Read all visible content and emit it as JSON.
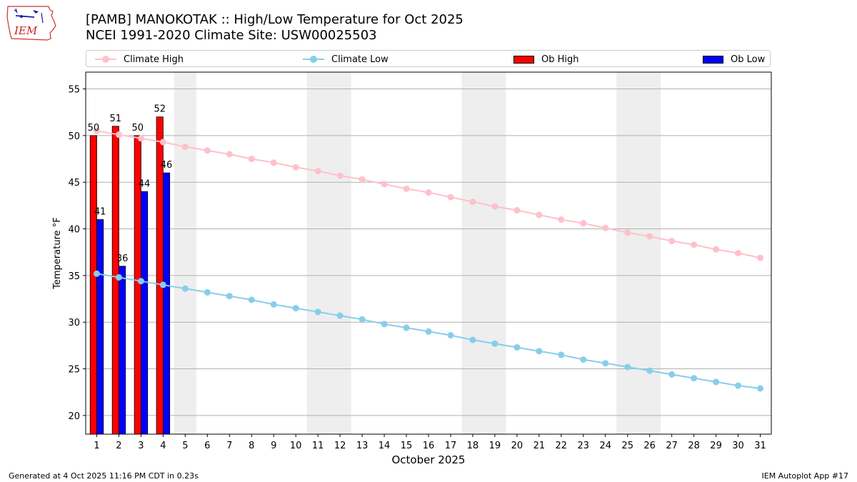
{
  "title_line1": "[PAMB] MANOKOTAK :: High/Low Temperature for Oct 2025",
  "title_line2": "NCEI 1991-2020 Climate Site: USW00025503",
  "logo_text": "IEM",
  "footer_left": "Generated at 4 Oct 2025 11:16 PM CDT in 0.23s",
  "footer_right": "IEM Autoplot App #17",
  "legend": {
    "climate_high": "Climate High",
    "climate_low": "Climate Low",
    "ob_high": "Ob High",
    "ob_low": "Ob Low"
  },
  "colors": {
    "climate_high": "#ffc0cb",
    "climate_low": "#87ceeb",
    "ob_high": "#ff0000",
    "ob_low": "#0000ff",
    "weekend_band": "#eeeeee",
    "grid": "#b0b0b0"
  },
  "chart_data": {
    "type": "bar",
    "xlabel": "October 2025",
    "ylabel": "Temperature °F",
    "ylim": [
      18,
      56.8
    ],
    "yticks": [
      20,
      25,
      30,
      35,
      40,
      45,
      50,
      55
    ],
    "xlim": [
      0.5,
      31.5
    ],
    "x": [
      1,
      2,
      3,
      4,
      5,
      6,
      7,
      8,
      9,
      10,
      11,
      12,
      13,
      14,
      15,
      16,
      17,
      18,
      19,
      20,
      21,
      22,
      23,
      24,
      25,
      26,
      27,
      28,
      29,
      30,
      31
    ],
    "grid": "horizontal",
    "legend_position": "top",
    "weekend_bands": [
      [
        4.5,
        5.5
      ],
      [
        10.5,
        12.5
      ],
      [
        17.5,
        19.5
      ],
      [
        24.5,
        26.5
      ]
    ],
    "series": [
      {
        "name": "Climate High",
        "type": "line",
        "values": [
          50.5,
          50.1,
          49.7,
          49.3,
          48.8,
          48.4,
          48.0,
          47.5,
          47.1,
          46.6,
          46.2,
          45.7,
          45.3,
          44.8,
          44.3,
          43.9,
          43.4,
          42.9,
          42.4,
          42.0,
          41.5,
          41.0,
          40.6,
          40.1,
          39.6,
          39.2,
          38.7,
          38.3,
          37.8,
          37.4,
          36.9
        ]
      },
      {
        "name": "Climate Low",
        "type": "line",
        "values": [
          35.2,
          34.8,
          34.4,
          34.0,
          33.6,
          33.2,
          32.8,
          32.4,
          31.9,
          31.5,
          31.1,
          30.7,
          30.3,
          29.8,
          29.4,
          29.0,
          28.6,
          28.1,
          27.7,
          27.3,
          26.9,
          26.5,
          26.0,
          25.6,
          25.2,
          24.8,
          24.4,
          24.0,
          23.6,
          23.2,
          22.9
        ]
      },
      {
        "name": "Ob High",
        "type": "bar",
        "x": [
          1,
          2,
          3,
          4
        ],
        "values": [
          50,
          51,
          50,
          52
        ],
        "labels": [
          "50",
          "51",
          "50",
          "52"
        ]
      },
      {
        "name": "Ob Low",
        "type": "bar",
        "x": [
          1,
          2,
          3,
          4
        ],
        "values": [
          41,
          36,
          44,
          46
        ],
        "labels": [
          "41",
          "36",
          "44",
          "46"
        ]
      }
    ]
  }
}
